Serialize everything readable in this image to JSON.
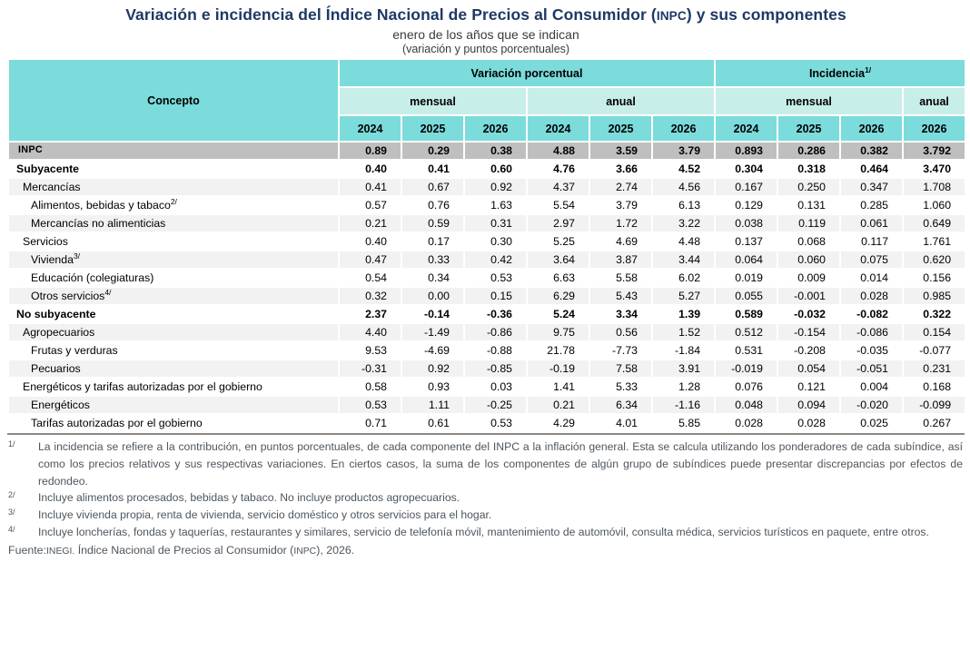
{
  "title": {
    "part1": "Variación e incidencia del Índice Nacional de Precios al Consumidor (",
    "acronym": "INPC",
    "part2": ") y sus componentes"
  },
  "subtitle": "enero de los años que se indican",
  "note_line": "(variación y puntos porcentuales)",
  "colors": {
    "header_teal": "#7CDBDB",
    "header_light_teal": "#C8EEE9",
    "inpc_row_gray": "#BFBFBF",
    "stripe_gray": "#F2F2F2",
    "title_navy": "#1F3864"
  },
  "table": {
    "concept_header": "Concepto",
    "groups": [
      {
        "label": "Variación porcentual",
        "sup": ""
      },
      {
        "label": "Incidencia",
        "sup": "1/"
      }
    ],
    "subgroups": [
      "mensual",
      "anual",
      "mensual",
      "anual"
    ],
    "years": [
      "2024",
      "2025",
      "2026",
      "2024",
      "2025",
      "2026",
      "2024",
      "2025",
      "2026",
      "2026"
    ],
    "rows": [
      {
        "label": "INPC",
        "sup": "",
        "level": "total",
        "values": [
          "0.89",
          "0.29",
          "0.38",
          "4.88",
          "3.59",
          "3.79",
          "0.893",
          "0.286",
          "0.382",
          "3.792"
        ]
      },
      {
        "label": "Subyacente",
        "sup": "",
        "level": "group",
        "values": [
          "0.40",
          "0.41",
          "0.60",
          "4.76",
          "3.66",
          "4.52",
          "0.304",
          "0.318",
          "0.464",
          "3.470"
        ]
      },
      {
        "label": "Mercancías",
        "sup": "",
        "level": "mid",
        "values": [
          "0.41",
          "0.67",
          "0.92",
          "4.37",
          "2.74",
          "4.56",
          "0.167",
          "0.250",
          "0.347",
          "1.708"
        ]
      },
      {
        "label": "Alimentos, bebidas y tabaco",
        "sup": "2/",
        "level": "leaf",
        "values": [
          "0.57",
          "0.76",
          "1.63",
          "5.54",
          "3.79",
          "6.13",
          "0.129",
          "0.131",
          "0.285",
          "1.060"
        ]
      },
      {
        "label": "Mercancías no alimenticias",
        "sup": "",
        "level": "leaf",
        "values": [
          "0.21",
          "0.59",
          "0.31",
          "2.97",
          "1.72",
          "3.22",
          "0.038",
          "0.119",
          "0.061",
          "0.649"
        ]
      },
      {
        "label": "Servicios",
        "sup": "",
        "level": "mid",
        "values": [
          "0.40",
          "0.17",
          "0.30",
          "5.25",
          "4.69",
          "4.48",
          "0.137",
          "0.068",
          "0.117",
          "1.761"
        ]
      },
      {
        "label": "Vivienda",
        "sup": "3/",
        "level": "leaf",
        "values": [
          "0.47",
          "0.33",
          "0.42",
          "3.64",
          "3.87",
          "3.44",
          "0.064",
          "0.060",
          "0.075",
          "0.620"
        ]
      },
      {
        "label": "Educación (colegiaturas)",
        "sup": "",
        "level": "leaf",
        "values": [
          "0.54",
          "0.34",
          "0.53",
          "6.63",
          "5.58",
          "6.02",
          "0.019",
          "0.009",
          "0.014",
          "0.156"
        ]
      },
      {
        "label": "Otros servicios",
        "sup": "4/",
        "level": "leaf",
        "values": [
          "0.32",
          "0.00",
          "0.15",
          "6.29",
          "5.43",
          "5.27",
          "0.055",
          "-0.001",
          "0.028",
          "0.985"
        ]
      },
      {
        "label": "No subyacente",
        "sup": "",
        "level": "group",
        "values": [
          "2.37",
          "-0.14",
          "-0.36",
          "5.24",
          "3.34",
          "1.39",
          "0.589",
          "-0.032",
          "-0.082",
          "0.322"
        ]
      },
      {
        "label": "Agropecuarios",
        "sup": "",
        "level": "mid",
        "values": [
          "4.40",
          "-1.49",
          "-0.86",
          "9.75",
          "0.56",
          "1.52",
          "0.512",
          "-0.154",
          "-0.086",
          "0.154"
        ]
      },
      {
        "label": "Frutas y verduras",
        "sup": "",
        "level": "leaf",
        "values": [
          "9.53",
          "-4.69",
          "-0.88",
          "21.78",
          "-7.73",
          "-1.84",
          "0.531",
          "-0.208",
          "-0.035",
          "-0.077"
        ]
      },
      {
        "label": "Pecuarios",
        "sup": "",
        "level": "leaf",
        "values": [
          "-0.31",
          "0.92",
          "-0.85",
          "-0.19",
          "7.58",
          "3.91",
          "-0.019",
          "0.054",
          "-0.051",
          "0.231"
        ]
      },
      {
        "label": "Energéticos y tarifas autorizadas por el gobierno",
        "sup": "",
        "level": "mid",
        "values": [
          "0.58",
          "0.93",
          "0.03",
          "1.41",
          "5.33",
          "1.28",
          "0.076",
          "0.121",
          "0.004",
          "0.168"
        ]
      },
      {
        "label": "Energéticos",
        "sup": "",
        "level": "leaf",
        "values": [
          "0.53",
          "1.11",
          "-0.25",
          "0.21",
          "6.34",
          "-1.16",
          "0.048",
          "0.094",
          "-0.020",
          "-0.099"
        ]
      },
      {
        "label": "Tarifas autorizadas por el gobierno",
        "sup": "",
        "level": "leaf",
        "values": [
          "0.71",
          "0.61",
          "0.53",
          "4.29",
          "4.01",
          "5.85",
          "0.028",
          "0.028",
          "0.025",
          "0.267"
        ]
      }
    ]
  },
  "footnotes": [
    {
      "marker": "1/",
      "text": "La incidencia se refiere a la contribución, en puntos porcentuales, de cada componente del INPC a la inflación general. Esta se calcula utilizando los ponderadores de cada subíndice, así como los precios relativos y sus respectivas variaciones. En ciertos casos, la suma de los componentes de algún grupo de subíndices puede presentar discrepancias por efectos de redondeo."
    },
    {
      "marker": "2/",
      "text": "Incluye alimentos procesados, bebidas y tabaco. No incluye productos agropecuarios."
    },
    {
      "marker": "3/",
      "text": "Incluye vivienda propia, renta de vivienda, servicio doméstico y otros servicios para el hogar."
    },
    {
      "marker": "4/",
      "text": "Incluye loncherías, fondas y taquerías, restaurantes y similares, servicio de telefonía móvil, mantenimiento de automóvil, consulta médica, servicios turísticos en paquete, entre otros."
    }
  ],
  "source": {
    "label": "Fuente:",
    "parts": [
      {
        "text": "INEGI.",
        "acronym": true
      },
      {
        "text": " Índice Nacional de Precios al Consumidor (",
        "acronym": false
      },
      {
        "text": "INPC",
        "acronym": true
      },
      {
        "text": "), 2026.",
        "acronym": false
      }
    ]
  }
}
